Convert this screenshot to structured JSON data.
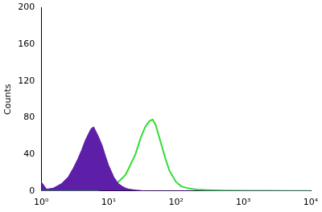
{
  "chart_data": {
    "type": "line",
    "y_label": "Counts",
    "log": "x",
    "x": [
      1,
      1.2,
      1.5,
      2,
      2.5,
      3,
      3.5,
      4,
      4.5,
      5,
      5.5,
      6,
      7,
      8,
      9,
      10,
      12,
      14,
      16,
      18,
      20,
      25,
      30,
      35,
      40,
      45,
      50,
      60,
      70,
      80,
      100,
      120,
      150,
      200,
      300,
      500,
      1000,
      2000,
      5000,
      10000
    ],
    "series": [
      {
        "type": "area",
        "color": "#5e1fa8",
        "values": [
          10,
          2,
          3,
          8,
          15,
          25,
          35,
          45,
          55,
          62,
          68,
          70,
          60,
          50,
          38,
          28,
          15,
          8,
          5,
          3,
          2,
          1,
          0.5,
          0,
          0,
          0,
          0,
          0,
          0,
          0,
          0,
          0,
          0,
          0,
          0,
          0,
          0,
          0,
          0,
          0
        ]
      },
      {
        "type": "line",
        "color": "#33dd33",
        "values": [
          0,
          0,
          0,
          0,
          0,
          0,
          0,
          0,
          0,
          0,
          0,
          0.5,
          1,
          2,
          3,
          4,
          7,
          10,
          14,
          18,
          25,
          40,
          58,
          70,
          76,
          78,
          72,
          52,
          35,
          22,
          10,
          5,
          3,
          1.5,
          1,
          0.5,
          0.3,
          0.2,
          0,
          0
        ]
      }
    ],
    "xlim": [
      1,
      10000
    ],
    "xticks": [
      {
        "value": 1,
        "label": "10⁰"
      },
      {
        "value": 10,
        "label": "10¹"
      },
      {
        "value": 100,
        "label": "10²"
      },
      {
        "value": 1000,
        "label": "10³"
      },
      {
        "value": 10000,
        "label": "10⁴"
      }
    ],
    "ylim": [
      0,
      200
    ],
    "yticks": [
      0,
      40,
      80,
      120,
      160,
      200
    ],
    "grid": false
  }
}
